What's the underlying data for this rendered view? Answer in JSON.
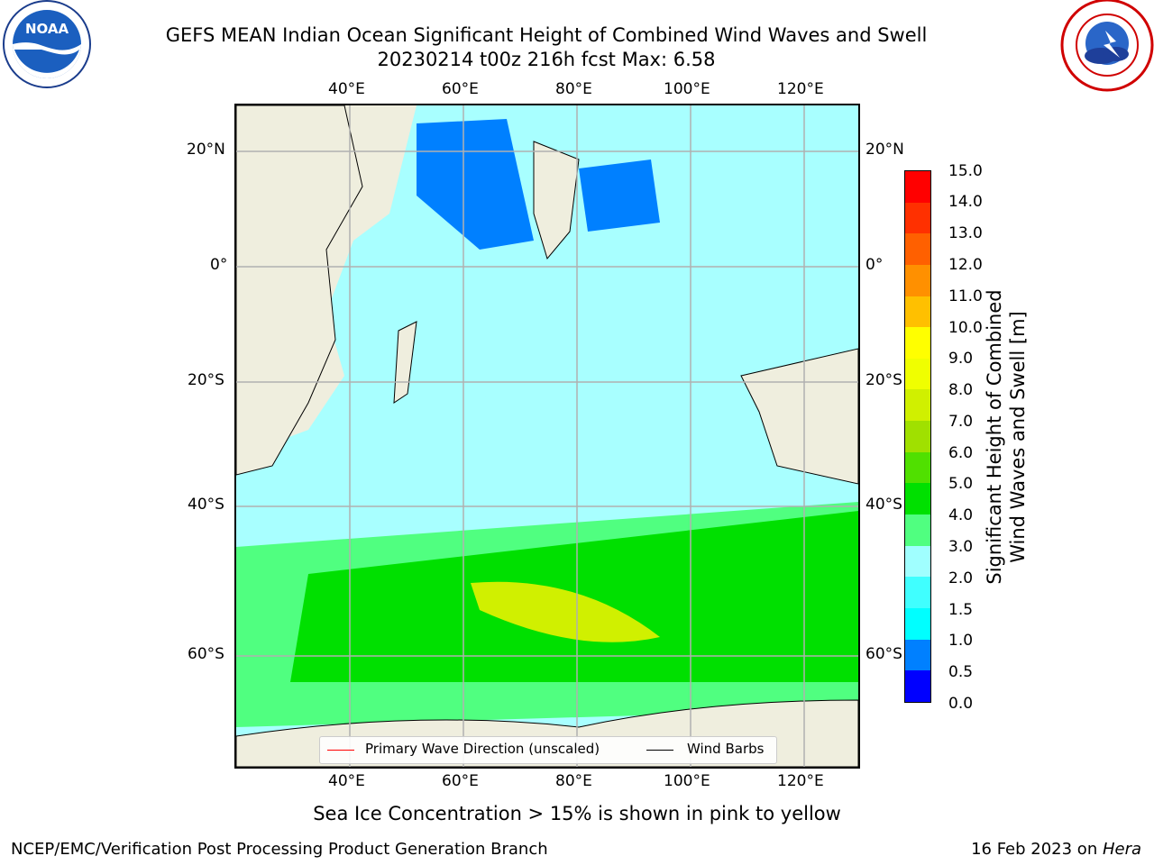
{
  "title_line1": "GEFS MEAN Indian Ocean Significant Height of Combined Wind Waves and Swell",
  "title_line2": "20230214 t00z 216h fcst   Max: 6.58",
  "logos": {
    "left": "noaa-logo-icon",
    "right": "nws-logo-icon"
  },
  "top_lon_ticks": [
    "40°E",
    "60°E",
    "80°E",
    "100°E",
    "120°E"
  ],
  "bottom_lon_ticks": [
    "40°E",
    "60°E",
    "80°E",
    "100°E",
    "120°E"
  ],
  "left_lat_ticks": [
    "20°N",
    "0°",
    "20°S",
    "40°S",
    "60°S"
  ],
  "right_lat_ticks": [
    "20°N",
    "0°",
    "20°S",
    "40°S",
    "60°S"
  ],
  "colorbar": {
    "title_line1": "Significant Height of Combined",
    "title_line2": "Wind Waves and Swell [m]",
    "ticks": [
      "0.0",
      "0.5",
      "1.0",
      "1.5",
      "2.0",
      "3.0",
      "4.0",
      "5.0",
      "6.0",
      "7.0",
      "8.0",
      "9.0",
      "10.0",
      "11.0",
      "12.0",
      "13.0",
      "14.0",
      "15.0"
    ],
    "colors": [
      "#0000ff",
      "#0080ff",
      "#00ffff",
      "#40ffff",
      "#a0ffff",
      "#50ff80",
      "#00e000",
      "#50e000",
      "#a0e000",
      "#d0f000",
      "#f0ff00",
      "#ffff00",
      "#ffc000",
      "#ff9000",
      "#ff6000",
      "#ff3000",
      "#ff0000"
    ]
  },
  "legend": {
    "wave_label": "Primary Wave Direction (unscaled)",
    "barb_label": "Wind Barbs",
    "wave_color": "#ff0000",
    "barb_color": "#000000"
  },
  "caption": "Sea Ice Concentration > 15% is shown in pink to yellow",
  "footer_left": "NCEP/EMC/Verification Post Processing Product Generation Branch",
  "footer_right_date": "16 Feb 2023 on ",
  "footer_right_machine": "Hera"
}
